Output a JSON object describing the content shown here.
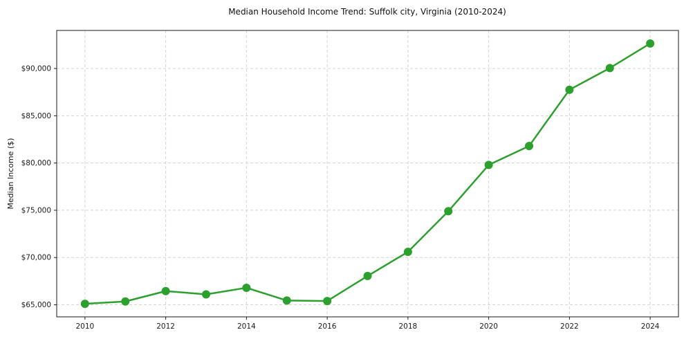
{
  "figure": {
    "title": "Median Household Income Trend: Suffolk city, Virginia (2010-2024)"
  },
  "chart_data": {
    "type": "line",
    "title": "Median Household Income Trend: Suffolk city, Virginia (2010-2024)",
    "xlabel": "",
    "ylabel": "Median Income ($)",
    "x": [
      2010,
      2011,
      2012,
      2013,
      2014,
      2015,
      2016,
      2017,
      2018,
      2019,
      2020,
      2021,
      2022,
      2023,
      2024
    ],
    "series": [
      {
        "name": "Median Household Income",
        "values": [
          65100,
          65350,
          66450,
          66100,
          66800,
          65450,
          65400,
          68050,
          70600,
          74900,
          79800,
          81800,
          87750,
          90050,
          92650
        ]
      }
    ],
    "x_tick_values": [
      2010,
      2012,
      2014,
      2016,
      2018,
      2020,
      2022,
      2024
    ],
    "x_tick_labels": [
      "2010",
      "2012",
      "2014",
      "2016",
      "2018",
      "2020",
      "2022",
      "2024"
    ],
    "y_tick_values": [
      65000,
      70000,
      75000,
      80000,
      85000,
      90000
    ],
    "y_tick_labels": [
      "$65,000",
      "$70,000",
      "$75,000",
      "$80,000",
      "$85,000",
      "$90,000"
    ],
    "xlim": [
      2009.3,
      2024.7
    ],
    "ylim": [
      63722,
      94028
    ],
    "grid": "dashed",
    "legend": "none",
    "colors": {
      "line": "#2ca02c",
      "marker": "#2ca02c",
      "gridline": "#d4d4d4",
      "frame": "#1a1a1a",
      "tick": "#1a1a1a"
    }
  }
}
